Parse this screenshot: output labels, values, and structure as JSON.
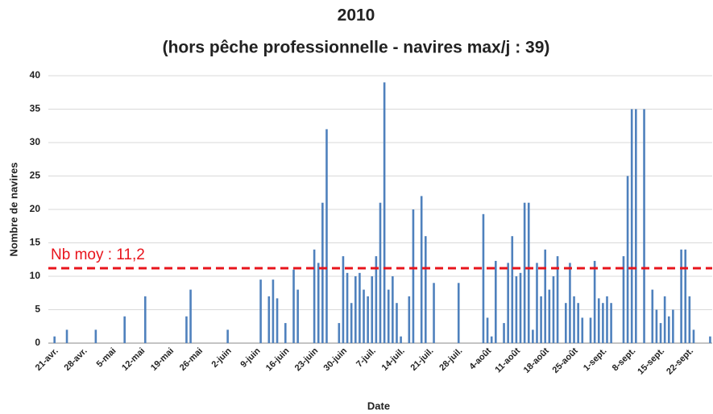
{
  "chart_data": {
    "type": "bar",
    "title": "2010",
    "subtitle": "(hors pêche professionnelle - navires max/j : 39)",
    "x_label": "Date",
    "y_label": "Nombre de navires",
    "categories": [
      null,
      "21-avr.",
      null,
      null,
      null,
      null,
      null,
      null,
      "28-avr.",
      null,
      null,
      null,
      null,
      null,
      null,
      "5-mai",
      null,
      null,
      null,
      null,
      null,
      null,
      "12-mai",
      null,
      null,
      null,
      null,
      null,
      null,
      "19-mai",
      null,
      null,
      null,
      null,
      null,
      null,
      "26-mai",
      null,
      null,
      null,
      null,
      null,
      null,
      "2-juin",
      null,
      null,
      null,
      null,
      null,
      null,
      "9-juin",
      null,
      null,
      null,
      null,
      null,
      null,
      "16-juin",
      null,
      null,
      null,
      null,
      null,
      null,
      "23-juin",
      null,
      null,
      null,
      null,
      null,
      null,
      "30-juin",
      null,
      null,
      null,
      null,
      null,
      null,
      "7-juil.",
      null,
      null,
      null,
      null,
      null,
      null,
      "14-juil.",
      null,
      null,
      null,
      null,
      null,
      null,
      "21-juil.",
      null,
      null,
      null,
      null,
      null,
      null,
      "28-juil.",
      null,
      null,
      null,
      null,
      null,
      null,
      "4-août",
      null,
      null,
      null,
      null,
      null,
      null,
      "11-août",
      null,
      null,
      null,
      null,
      null,
      null,
      "18-août",
      null,
      null,
      null,
      null,
      null,
      null,
      "25-août",
      null,
      null,
      null,
      null,
      null,
      null,
      "1-sept.",
      null,
      null,
      null,
      null,
      null,
      null,
      "8-sept.",
      null,
      null,
      null,
      null,
      null,
      null,
      "15-sept.",
      null,
      null,
      null,
      null,
      null,
      null,
      "22-sept.",
      null,
      null,
      null,
      null,
      null
    ],
    "values": [
      0,
      1,
      0,
      0,
      2,
      0,
      0,
      0,
      0,
      0,
      0,
      2,
      0,
      0,
      0,
      0,
      0,
      0,
      4,
      0,
      0,
      0,
      0,
      7,
      0,
      0,
      0,
      0,
      0,
      0,
      0,
      0,
      0,
      4,
      8,
      0,
      0,
      0,
      0,
      0,
      0,
      0,
      0,
      2,
      0,
      0,
      0,
      0,
      0,
      0,
      0,
      9.5,
      0,
      7,
      9.5,
      6.7,
      0,
      3,
      0,
      11,
      8,
      0,
      0,
      0,
      14,
      12,
      21,
      32,
      0,
      0,
      3,
      13,
      10.5,
      6,
      10,
      10.5,
      8,
      7,
      10,
      13,
      21,
      39,
      8,
      10,
      6,
      1,
      0,
      7,
      20,
      0,
      22,
      16,
      0,
      9,
      0,
      0,
      0,
      0,
      0,
      9,
      0,
      0,
      0,
      0,
      0,
      19.3,
      3.8,
      1,
      12.3,
      0,
      3,
      12,
      16,
      10,
      10.5,
      21,
      21,
      2,
      12,
      7,
      14,
      8,
      10,
      13,
      0,
      6,
      12,
      7,
      6,
      3.8,
      0,
      3.8,
      12.3,
      6.7,
      6,
      7,
      6,
      0,
      0,
      13,
      25,
      35,
      35,
      0,
      35,
      0,
      8,
      5,
      3,
      7,
      4,
      5,
      0,
      14,
      14,
      7,
      2,
      0,
      0,
      0,
      1
    ],
    "color": "#4f81bd",
    "ylim": [
      0,
      40
    ],
    "yticks": [
      0,
      5,
      10,
      15,
      20,
      25,
      30,
      35,
      40
    ],
    "grid": true,
    "average": 11.2,
    "average_label": "Nb moy : 11,2",
    "average_color": "#e8141c"
  }
}
